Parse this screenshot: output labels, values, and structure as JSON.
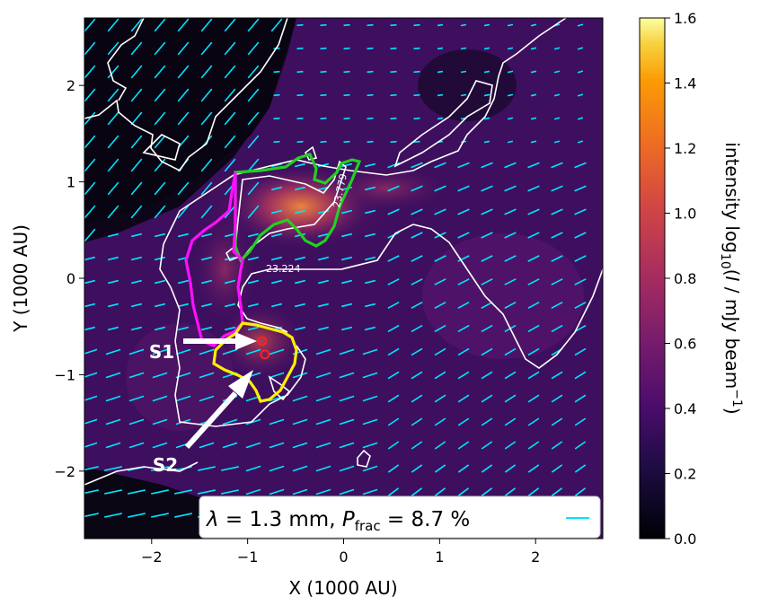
{
  "chart_data": {
    "type": "heatmap",
    "title": "",
    "xlabel": "X (1000 AU)",
    "ylabel": "Y (1000 AU)",
    "xlim": [
      -2.7,
      2.7
    ],
    "ylim": [
      -2.7,
      2.7
    ],
    "x_ticks": [
      -2,
      -1,
      0,
      1,
      2
    ],
    "y_ticks": [
      -2,
      -1,
      0,
      1,
      2
    ],
    "x_tick_labels": [
      "−2",
      "−1",
      "0",
      "1",
      "2"
    ],
    "y_tick_labels": [
      "−2",
      "−1",
      "0",
      "1",
      "2"
    ],
    "colorbar": {
      "label": "intensity log₁₀(I / mJy beam⁻¹)",
      "range": [
        0.0,
        1.6
      ],
      "ticks": [
        0.0,
        0.2,
        0.4,
        0.6,
        0.8,
        1.0,
        1.2,
        1.4,
        1.6
      ],
      "tick_labels": [
        "0.0",
        "0.2",
        "0.4",
        "0.6",
        "0.8",
        "1.0",
        "1.2",
        "1.4",
        "1.6"
      ],
      "colormap": "inferno"
    },
    "contour_labels": [
      {
        "text": "23.224",
        "x": -0.65,
        "y": 0.1
      },
      {
        "text": "23.779",
        "x": -0.1,
        "y": 0.93
      }
    ],
    "sources": [
      {
        "name": "S1",
        "x": -0.85,
        "y": -0.65
      },
      {
        "name": "S2",
        "x": -0.82,
        "y": -0.79
      }
    ],
    "legend": {
      "text": "λ = 1.3 mm, P_frac = 8.7 %",
      "placement": "bottom-right",
      "line_color": "#00e5ff"
    },
    "colors": {
      "vectors": "#00e5ff",
      "contour_white": "#ffffff",
      "region_green": "#22d022",
      "region_magenta": "#ff10ff",
      "region_yellow": "#ffee00"
    }
  }
}
